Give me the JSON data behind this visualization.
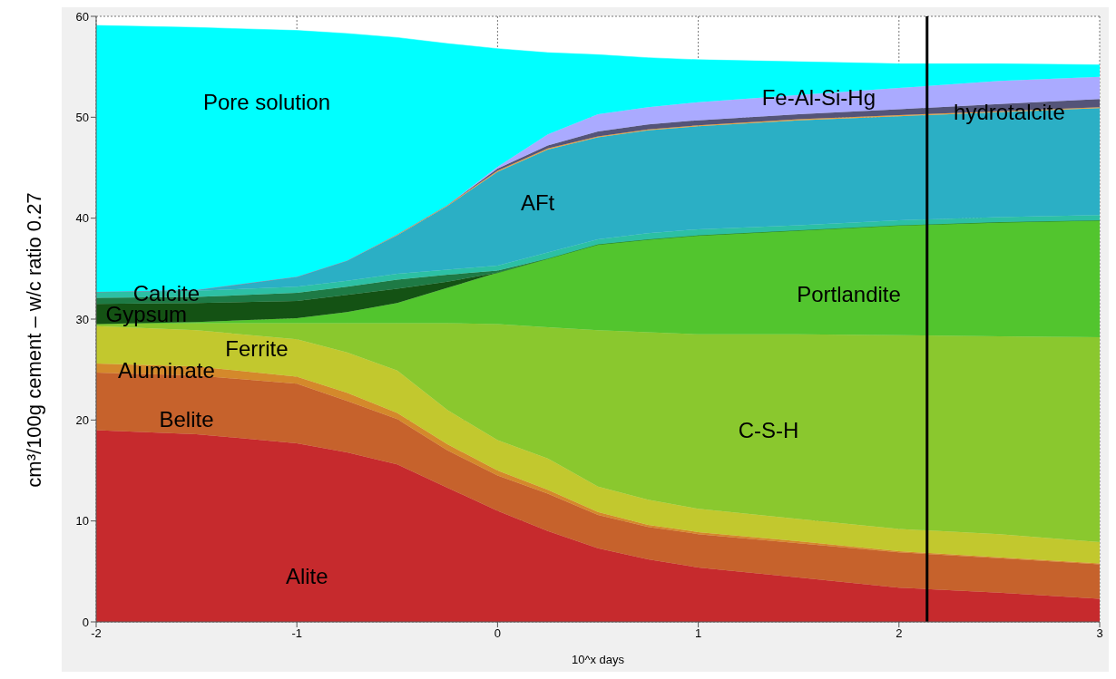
{
  "chart_data": {
    "type": "area",
    "stacked": true,
    "xlabel": "10^x days",
    "ylabel": "cm³/100g cement – w/c ratio 0.27",
    "x": [
      -2,
      -1.5,
      -1,
      -0.75,
      -0.5,
      -0.25,
      0,
      0.25,
      0.5,
      0.75,
      1,
      1.5,
      2,
      2.5,
      3
    ],
    "xlim": [
      -2,
      3
    ],
    "xticks": [
      -2,
      -1,
      0,
      1,
      2,
      3
    ],
    "ylim": [
      0,
      60
    ],
    "yticks": [
      0,
      10,
      20,
      30,
      40,
      50,
      60
    ],
    "grid": true,
    "series": [
      {
        "name": "Alite",
        "color": "#c62a2d",
        "values": [
          19.0,
          18.6,
          17.7,
          16.8,
          15.6,
          13.3,
          11.0,
          9.0,
          7.3,
          6.2,
          5.4,
          4.4,
          3.4,
          2.9,
          2.3
        ]
      },
      {
        "name": "Belite",
        "color": "#c6622c",
        "values": [
          5.7,
          5.8,
          5.9,
          5.1,
          4.5,
          3.7,
          3.5,
          3.7,
          3.3,
          3.2,
          3.3,
          3.4,
          3.5,
          3.4,
          3.4
        ]
      },
      {
        "name": "Aluminate",
        "color": "#d4892b",
        "values": [
          0.9,
          0.9,
          0.7,
          0.8,
          0.6,
          0.6,
          0.5,
          0.4,
          0.3,
          0.2,
          0.2,
          0.2,
          0.1,
          0.1,
          0.1
        ]
      },
      {
        "name": "Ferrite",
        "color": "#c2c82e",
        "values": [
          3.7,
          3.6,
          3.7,
          4.0,
          4.2,
          3.4,
          3.0,
          3.1,
          2.5,
          2.5,
          2.3,
          2.2,
          2.2,
          2.3,
          2.1
        ]
      },
      {
        "name": "C-S-H",
        "color": "#8ac82e",
        "values": [
          0.2,
          0.7,
          1.6,
          2.9,
          4.7,
          8.6,
          11.5,
          13.0,
          15.5,
          16.6,
          17.3,
          18.3,
          19.2,
          19.6,
          20.3
        ]
      },
      {
        "name": "Portlandite",
        "color": "#52c52e",
        "values": [
          0,
          0.1,
          0.5,
          1.1,
          2.0,
          3.5,
          5.1,
          6.8,
          8.5,
          9.2,
          9.8,
          10.3,
          10.9,
          11.3,
          11.6
        ]
      },
      {
        "name": "Gypsum",
        "color": "#145214",
        "values": [
          2.0,
          1.9,
          1.7,
          1.7,
          1.4,
          0.6,
          0,
          0,
          0,
          0,
          0,
          0,
          0,
          0,
          0
        ]
      },
      {
        "color": "#1e7a45",
        "values": [
          0.6,
          0.6,
          0.8,
          0.8,
          0.9,
          0.7,
          0.2,
          0,
          0,
          0,
          0,
          0,
          0,
          0,
          0
        ]
      },
      {
        "name": "Calcite",
        "color": "#2cc0a4",
        "values": [
          0.6,
          0.6,
          0.6,
          0.6,
          0.6,
          0.5,
          0.5,
          0.6,
          0.5,
          0.6,
          0.6,
          0.5,
          0.5,
          0.5,
          0.5
        ]
      },
      {
        "name": "AFt",
        "color": "#2bafc5",
        "values": [
          0,
          0.1,
          1.0,
          2.0,
          3.8,
          6.3,
          9.3,
          10.2,
          10.1,
          10.2,
          10.2,
          10.4,
          10.3,
          10.4,
          10.6
        ]
      },
      {
        "color": "#e8a040",
        "values": [
          0,
          0,
          0,
          0,
          0.1,
          0.1,
          0.1,
          0.1,
          0.1,
          0.1,
          0.1,
          0.1,
          0.1,
          0.1,
          0.1
        ]
      },
      {
        "name": "hydrotalcite",
        "color": "#545478",
        "values": [
          0,
          0,
          0,
          0,
          0,
          0,
          0.2,
          0.3,
          0.5,
          0.5,
          0.5,
          0.5,
          0.6,
          0.7,
          0.8
        ]
      },
      {
        "name": "Fe-Al-Si-Hg",
        "color": "#aaaaff",
        "values": [
          0,
          0,
          0,
          0,
          0,
          0,
          0.2,
          1.1,
          1.7,
          1.7,
          1.8,
          1.9,
          2.1,
          2.3,
          2.2
        ]
      },
      {
        "name": "Pore solution",
        "color": "#00ffff",
        "values": [
          26.4,
          26.0,
          24.4,
          22.5,
          19.5,
          16.0,
          11.7,
          8.1,
          5.9,
          4.9,
          4.2,
          3.3,
          2.4,
          1.7,
          1.2
        ]
      }
    ],
    "ref_lines": [
      {
        "axis": "x",
        "value": 2.14,
        "color": "#000000"
      }
    ]
  }
}
